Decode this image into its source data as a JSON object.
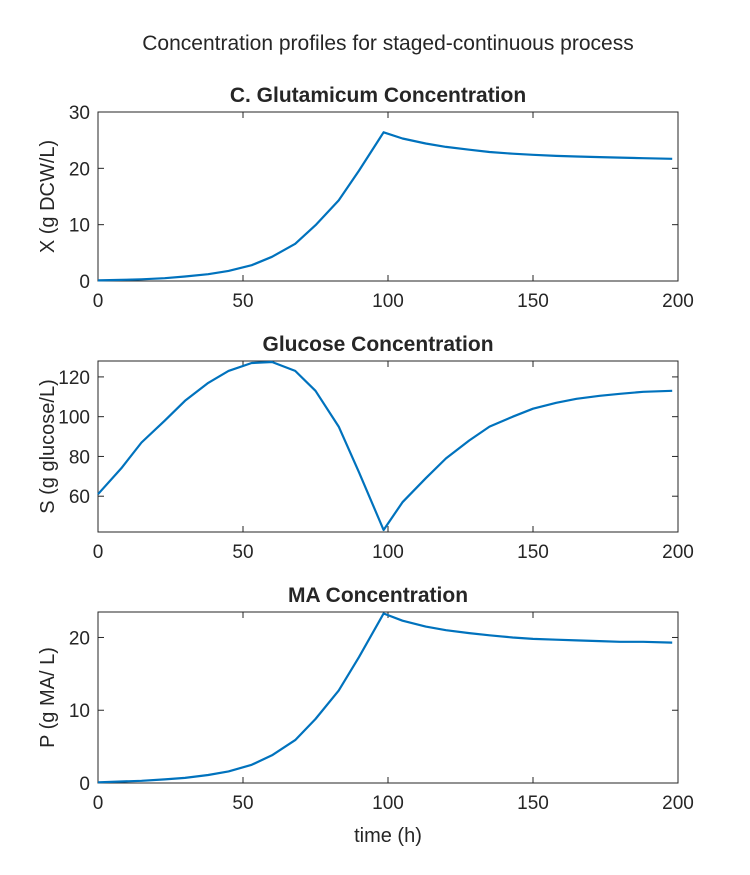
{
  "figure_title": "Concentration profiles for staged-continuous process",
  "colors": {
    "series": "#0072BD",
    "axes": "#262626",
    "background": "#ffffff"
  },
  "chart_data": [
    {
      "type": "line",
      "title": "C. Glutamicum Concentration",
      "xlabel": "",
      "ylabel": "X (g DCW/L)",
      "xlim": [
        0,
        200
      ],
      "ylim": [
        0,
        30
      ],
      "xticks": [
        "0",
        "50",
        "100",
        "150",
        "200"
      ],
      "yticks": [
        "0",
        "10",
        "20",
        "30"
      ],
      "grid": false,
      "series": [
        {
          "x": [
            0,
            8,
            15,
            23,
            30,
            38,
            45,
            53,
            60,
            68,
            75,
            83,
            90,
            98.5,
            105,
            113,
            120,
            128,
            135,
            143,
            150,
            158,
            165,
            173,
            180,
            188,
            198
          ],
          "y": [
            0.1,
            0.2,
            0.3,
            0.5,
            0.8,
            1.2,
            1.8,
            2.8,
            4.3,
            6.6,
            9.9,
            14.3,
            19.6,
            26.4,
            25.3,
            24.4,
            23.8,
            23.3,
            22.9,
            22.6,
            22.4,
            22.2,
            22.1,
            22.0,
            21.9,
            21.8,
            21.7
          ]
        }
      ]
    },
    {
      "type": "line",
      "title": "Glucose Concentration",
      "xlabel": "",
      "ylabel": "S (g glucose/L)",
      "xlim": [
        0,
        200
      ],
      "ylim": [
        42,
        128
      ],
      "xticks": [
        "0",
        "50",
        "100",
        "150",
        "200"
      ],
      "yticks": [
        "60",
        "80",
        "100",
        "120"
      ],
      "grid": false,
      "series": [
        {
          "x": [
            0,
            8,
            15,
            23,
            30,
            38,
            45,
            53,
            60,
            68,
            75,
            83,
            90,
            98.5,
            105,
            113,
            120,
            128,
            135,
            143,
            150,
            158,
            165,
            173,
            180,
            188,
            198
          ],
          "y": [
            61,
            74,
            87,
            98,
            108,
            117,
            123,
            127,
            127.5,
            123,
            113,
            95,
            72,
            43,
            57,
            69,
            79,
            88,
            95,
            100,
            104,
            107,
            109,
            110.5,
            111.5,
            112.5,
            113
          ]
        }
      ]
    },
    {
      "type": "line",
      "title": "MA Concentration",
      "xlabel": "time (h)",
      "ylabel": "P (g MA/ L)",
      "xlim": [
        0,
        200
      ],
      "ylim": [
        0,
        23.5
      ],
      "xticks": [
        "0",
        "50",
        "100",
        "150",
        "200"
      ],
      "yticks": [
        "0",
        "10",
        "20"
      ],
      "grid": false,
      "series": [
        {
          "x": [
            0,
            8,
            15,
            23,
            30,
            38,
            45,
            53,
            60,
            68,
            75,
            83,
            90,
            98.5,
            105,
            113,
            120,
            128,
            135,
            143,
            150,
            158,
            165,
            173,
            180,
            188,
            198
          ],
          "y": [
            0.1,
            0.2,
            0.3,
            0.5,
            0.7,
            1.1,
            1.6,
            2.5,
            3.8,
            5.9,
            8.8,
            12.7,
            17.3,
            23.3,
            22.3,
            21.5,
            21.0,
            20.6,
            20.3,
            20.0,
            19.8,
            19.7,
            19.6,
            19.5,
            19.4,
            19.4,
            19.3
          ]
        }
      ]
    }
  ]
}
